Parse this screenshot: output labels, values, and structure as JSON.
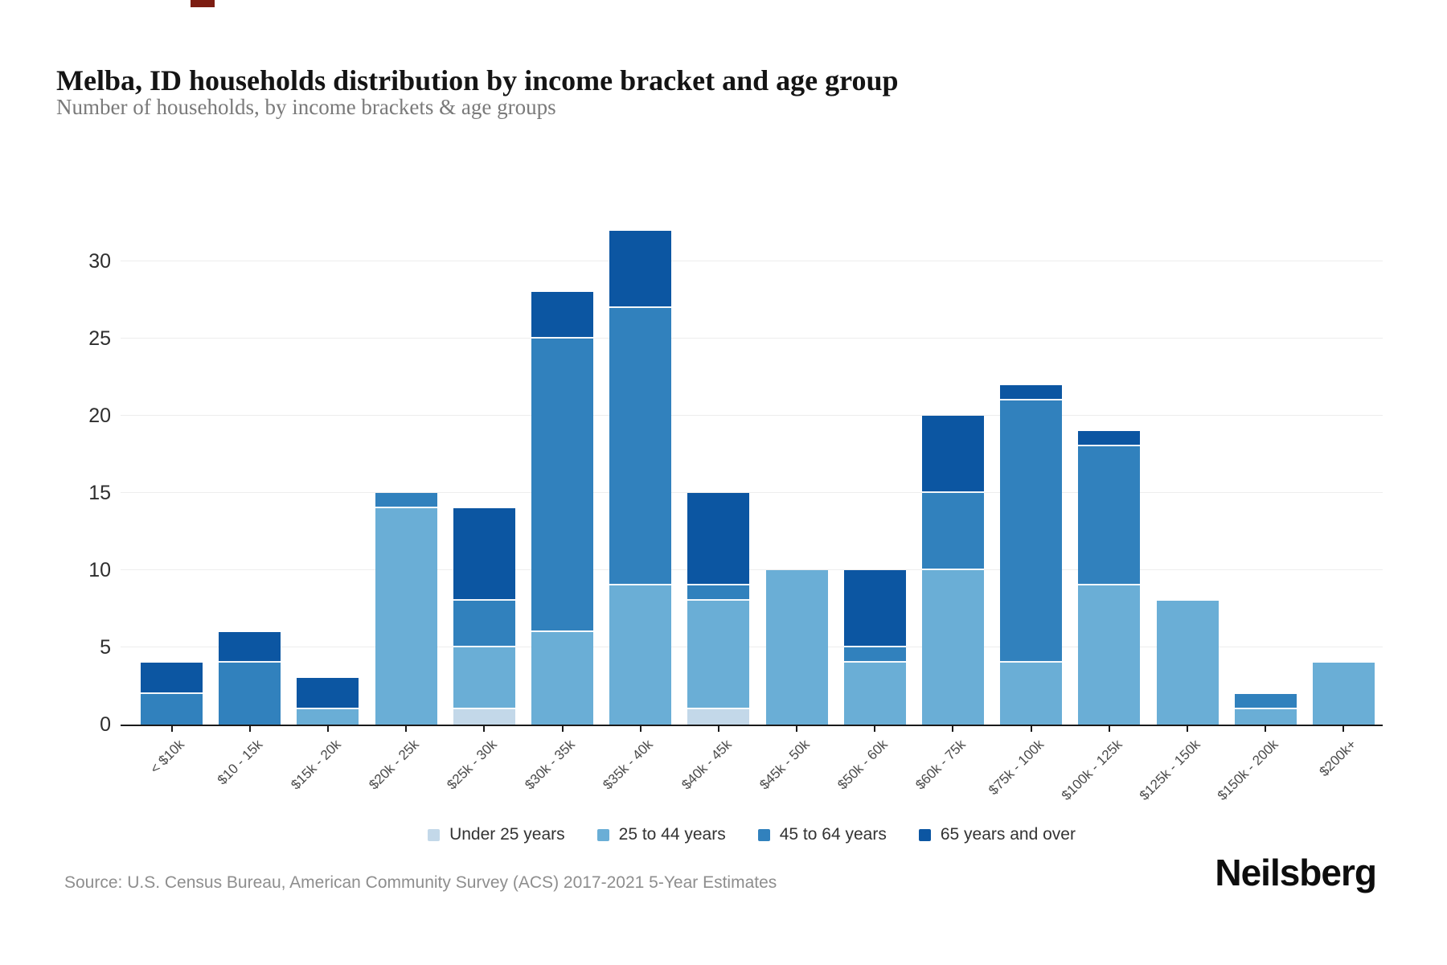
{
  "page": {
    "title": "Melba, ID households distribution by income bracket and age group",
    "subtitle": "Number of households, by income brackets & age groups",
    "source": "Source: U.S. Census Bureau, American Community Survey (ACS) 2017-2021 5-Year Estimates",
    "brand": "Neilsberg"
  },
  "chart_data": {
    "type": "bar",
    "stacked": true,
    "title": "Melba, ID households distribution by income bracket and age group",
    "subtitle": "Number of households, by income brackets & age groups",
    "xlabel": "",
    "ylabel": "",
    "grid": "horizontal",
    "legend_position": "bottom",
    "yticks": [
      0,
      5,
      10,
      15,
      20,
      25,
      30
    ],
    "ylim": [
      0,
      32.9
    ],
    "categories": [
      "< $10k",
      "$10 - 15k",
      "$15k - 20k",
      "$20k - 25k",
      "$25k - 30k",
      "$30k - 35k",
      "$35k - 40k",
      "$40k - 45k",
      "$45k - 50k",
      "$50k - 60k",
      "$60k - 75k",
      "$75k - 100k",
      "$100k - 125k",
      "$125k - 150k",
      "$150k - 200k",
      "$200k+"
    ],
    "series": [
      {
        "name": "Under 25 years",
        "color": "#c3d8e9",
        "values": [
          0,
          0,
          0,
          0,
          1,
          0,
          0,
          1,
          0,
          0,
          0,
          0,
          0,
          0,
          0,
          0
        ]
      },
      {
        "name": "25 to 44 years",
        "color": "#6aaed6",
        "values": [
          0,
          0,
          1,
          14,
          4,
          6,
          9,
          7,
          10,
          4,
          10,
          4,
          9,
          8,
          1,
          4
        ]
      },
      {
        "name": "45 to 64 years",
        "color": "#3181bd",
        "values": [
          2,
          4,
          0,
          1,
          3,
          19,
          18,
          1,
          0,
          1,
          5,
          17,
          9,
          0,
          1,
          0
        ]
      },
      {
        "name": "65 years and over",
        "color": "#0c56a2",
        "values": [
          2,
          2,
          2,
          0,
          6,
          3,
          5,
          6,
          0,
          5,
          5,
          1,
          1,
          0,
          0,
          0
        ]
      }
    ],
    "totals": [
      4,
      6,
      3,
      15,
      14,
      28,
      32,
      15,
      10,
      10,
      20,
      22,
      19,
      8,
      2,
      4
    ]
  }
}
